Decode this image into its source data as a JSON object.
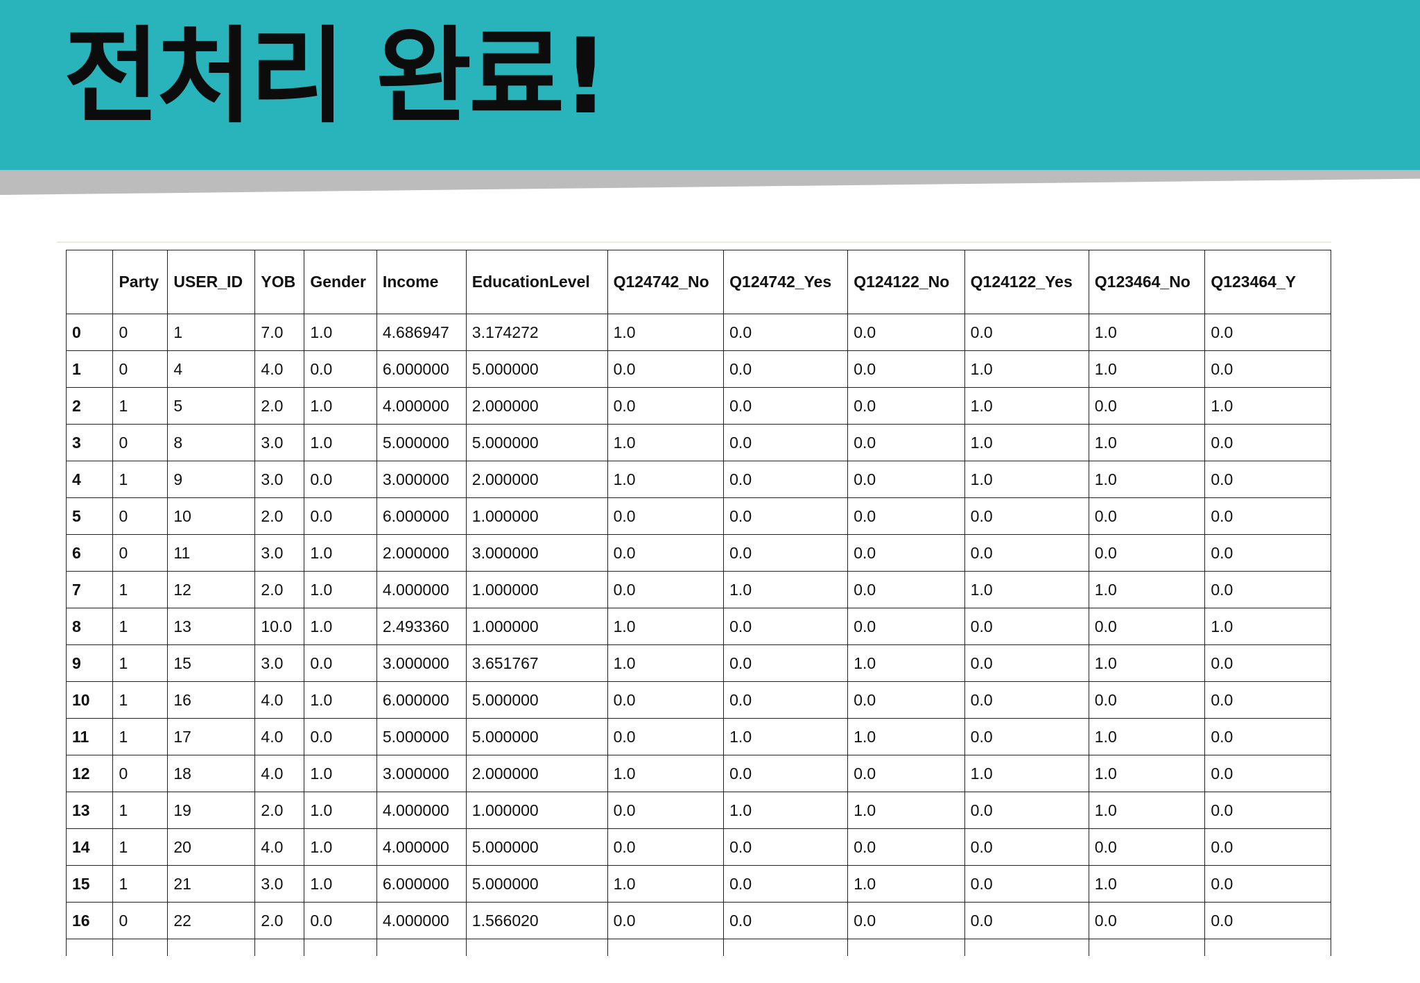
{
  "slide": {
    "title": "전처리 완료!"
  },
  "table": {
    "columns": [
      "",
      "Party",
      "USER_ID",
      "YOB",
      "Gender",
      "Income",
      "EducationLevel",
      "Q124742_No",
      "Q124742_Yes",
      "Q124122_No",
      "Q124122_Yes",
      "Q123464_No",
      "Q123464_Y"
    ],
    "rows": [
      [
        "0",
        "0",
        "1",
        "7.0",
        "1.0",
        "4.686947",
        "3.174272",
        "1.0",
        "0.0",
        "0.0",
        "0.0",
        "1.0",
        "0.0"
      ],
      [
        "1",
        "0",
        "4",
        "4.0",
        "0.0",
        "6.000000",
        "5.000000",
        "0.0",
        "0.0",
        "0.0",
        "1.0",
        "1.0",
        "0.0"
      ],
      [
        "2",
        "1",
        "5",
        "2.0",
        "1.0",
        "4.000000",
        "2.000000",
        "0.0",
        "0.0",
        "0.0",
        "1.0",
        "0.0",
        "1.0"
      ],
      [
        "3",
        "0",
        "8",
        "3.0",
        "1.0",
        "5.000000",
        "5.000000",
        "1.0",
        "0.0",
        "0.0",
        "1.0",
        "1.0",
        "0.0"
      ],
      [
        "4",
        "1",
        "9",
        "3.0",
        "0.0",
        "3.000000",
        "2.000000",
        "1.0",
        "0.0",
        "0.0",
        "1.0",
        "1.0",
        "0.0"
      ],
      [
        "5",
        "0",
        "10",
        "2.0",
        "0.0",
        "6.000000",
        "1.000000",
        "0.0",
        "0.0",
        "0.0",
        "0.0",
        "0.0",
        "0.0"
      ],
      [
        "6",
        "0",
        "11",
        "3.0",
        "1.0",
        "2.000000",
        "3.000000",
        "0.0",
        "0.0",
        "0.0",
        "0.0",
        "0.0",
        "0.0"
      ],
      [
        "7",
        "1",
        "12",
        "2.0",
        "1.0",
        "4.000000",
        "1.000000",
        "0.0",
        "1.0",
        "0.0",
        "1.0",
        "1.0",
        "0.0"
      ],
      [
        "8",
        "1",
        "13",
        "10.0",
        "1.0",
        "2.493360",
        "1.000000",
        "1.0",
        "0.0",
        "0.0",
        "0.0",
        "0.0",
        "1.0"
      ],
      [
        "9",
        "1",
        "15",
        "3.0",
        "0.0",
        "3.000000",
        "3.651767",
        "1.0",
        "0.0",
        "1.0",
        "0.0",
        "1.0",
        "0.0"
      ],
      [
        "10",
        "1",
        "16",
        "4.0",
        "1.0",
        "6.000000",
        "5.000000",
        "0.0",
        "0.0",
        "0.0",
        "0.0",
        "0.0",
        "0.0"
      ],
      [
        "11",
        "1",
        "17",
        "4.0",
        "0.0",
        "5.000000",
        "5.000000",
        "0.0",
        "1.0",
        "1.0",
        "0.0",
        "1.0",
        "0.0"
      ],
      [
        "12",
        "0",
        "18",
        "4.0",
        "1.0",
        "3.000000",
        "2.000000",
        "1.0",
        "0.0",
        "0.0",
        "1.0",
        "1.0",
        "0.0"
      ],
      [
        "13",
        "1",
        "19",
        "2.0",
        "1.0",
        "4.000000",
        "1.000000",
        "0.0",
        "1.0",
        "1.0",
        "0.0",
        "1.0",
        "0.0"
      ],
      [
        "14",
        "1",
        "20",
        "4.0",
        "1.0",
        "4.000000",
        "5.000000",
        "0.0",
        "0.0",
        "0.0",
        "0.0",
        "0.0",
        "0.0"
      ],
      [
        "15",
        "1",
        "21",
        "3.0",
        "1.0",
        "6.000000",
        "5.000000",
        "1.0",
        "0.0",
        "1.0",
        "0.0",
        "1.0",
        "0.0"
      ],
      [
        "16",
        "0",
        "22",
        "2.0",
        "0.0",
        "4.000000",
        "1.566020",
        "0.0",
        "0.0",
        "0.0",
        "0.0",
        "0.0",
        "0.0"
      ]
    ]
  }
}
